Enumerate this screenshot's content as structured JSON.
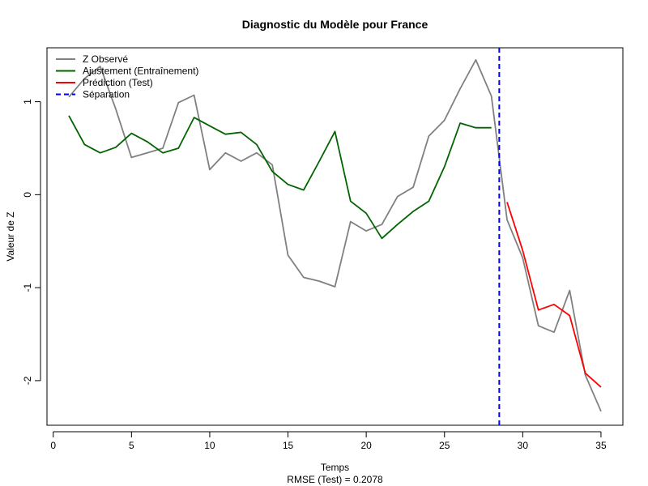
{
  "chart_data": {
    "type": "line",
    "title": "Diagnostic du Modèle pour France",
    "xlabel": "Temps",
    "xlabel_sub": "RMSE (Test) = 0.2078",
    "ylabel": "Valeur de Z",
    "xlim": [
      -0.4,
      36.4
    ],
    "ylim": [
      -2.48,
      1.58
    ],
    "xticks": [
      0,
      5,
      10,
      15,
      20,
      25,
      30,
      35
    ],
    "yticks": [
      -2,
      -1,
      0,
      1
    ],
    "grid": false,
    "legend_position": "top-left",
    "series": [
      {
        "name": "Z Observé",
        "color": "#808080",
        "dash": "solid",
        "x": [
          1,
          2,
          3,
          4,
          5,
          6,
          7,
          8,
          9,
          10,
          11,
          12,
          13,
          14,
          15,
          16,
          17,
          18,
          19,
          20,
          21,
          22,
          23,
          24,
          25,
          26,
          27,
          28,
          29,
          30,
          31,
          32,
          33,
          34,
          35
        ],
        "values": [
          1.05,
          1.25,
          1.38,
          0.92,
          0.4,
          0.45,
          0.5,
          0.99,
          1.07,
          0.27,
          0.45,
          0.36,
          0.45,
          0.32,
          -0.65,
          -0.89,
          -0.93,
          -0.99,
          -0.29,
          -0.39,
          -0.32,
          -0.02,
          0.08,
          0.63,
          0.8,
          1.14,
          1.45,
          1.06,
          -0.27,
          -0.68,
          -1.41,
          -1.48,
          -1.03,
          -1.94,
          -2.33
        ]
      },
      {
        "name": "Ajustement (Entraînement)",
        "color": "#006400",
        "dash": "solid",
        "x": [
          1,
          2,
          3,
          4,
          5,
          6,
          7,
          8,
          9,
          10,
          11,
          12,
          13,
          14,
          15,
          16,
          17,
          18,
          19,
          20,
          21,
          22,
          23,
          24,
          25,
          26,
          27,
          28
        ],
        "values": [
          0.85,
          0.54,
          0.45,
          0.51,
          0.66,
          0.57,
          0.45,
          0.5,
          0.83,
          0.74,
          0.65,
          0.67,
          0.54,
          0.25,
          0.11,
          0.05,
          0.36,
          0.68,
          -0.07,
          -0.2,
          -0.47,
          -0.32,
          -0.18,
          -0.07,
          0.3,
          0.77,
          0.72,
          0.72
        ]
      },
      {
        "name": "Prédiction (Test)",
        "color": "#ff0000",
        "dash": "solid",
        "x": [
          29,
          30,
          31,
          32,
          33,
          34,
          35
        ],
        "values": [
          -0.08,
          -0.6,
          -1.24,
          -1.18,
          -1.3,
          -1.92,
          -2.07
        ]
      }
    ],
    "separation": {
      "name": "Séparation",
      "x": 28.5,
      "color": "#0000ff",
      "dash": "dashed"
    }
  }
}
